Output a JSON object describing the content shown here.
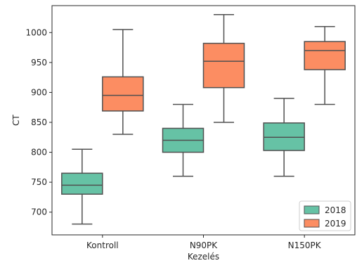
{
  "chart_data": {
    "type": "box",
    "xlabel": "Kezelés",
    "ylabel": "CT",
    "ylim": [
      662,
      1045
    ],
    "yticks": [
      700,
      750,
      800,
      850,
      900,
      950,
      1000
    ],
    "categories": [
      "Kontroll",
      "N90PK",
      "N150PK"
    ],
    "series": [
      {
        "name": "2018",
        "color": "#66c2a5",
        "boxes": [
          {
            "whisker_low": 680,
            "q1": 730,
            "median": 745,
            "q3": 765,
            "whisker_high": 805
          },
          {
            "whisker_low": 760,
            "q1": 800,
            "median": 820,
            "q3": 840,
            "whisker_high": 880
          },
          {
            "whisker_low": 760,
            "q1": 803,
            "median": 825,
            "q3": 849,
            "whisker_high": 890
          }
        ]
      },
      {
        "name": "2019",
        "color": "#fc8d62",
        "boxes": [
          {
            "whisker_low": 830,
            "q1": 869,
            "median": 895,
            "q3": 926,
            "whisker_high": 1005
          },
          {
            "whisker_low": 850,
            "q1": 908,
            "median": 952,
            "q3": 982,
            "whisker_high": 1030
          },
          {
            "whisker_low": 880,
            "q1": 938,
            "median": 970,
            "q3": 985,
            "whisker_high": 1010
          }
        ]
      }
    ],
    "legend": {
      "position": "lower right"
    },
    "grid": false
  }
}
